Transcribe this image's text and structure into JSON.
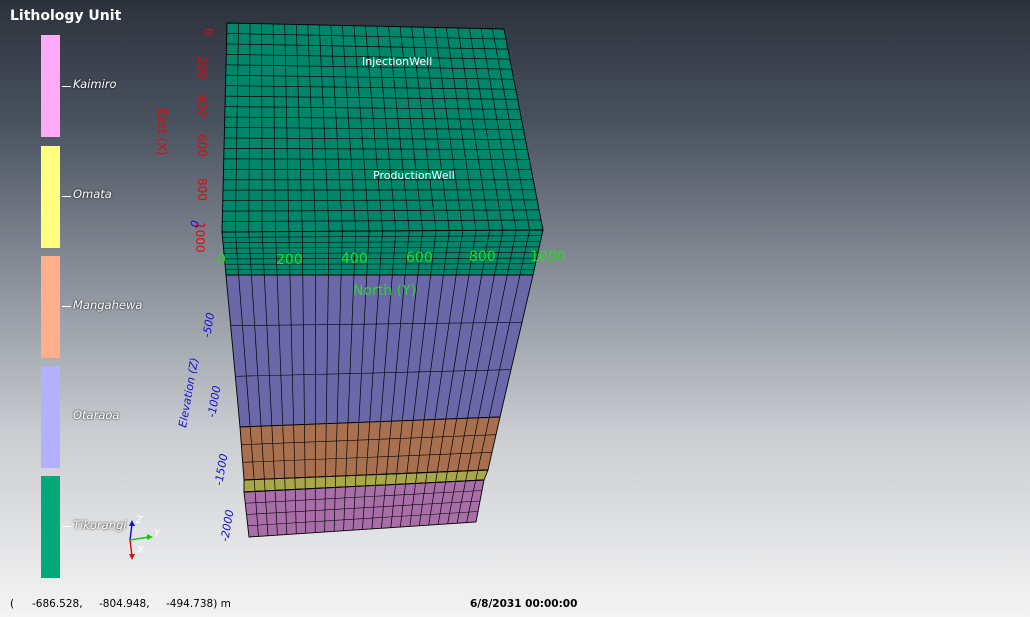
{
  "legend": {
    "title": "Lithology Unit",
    "units": [
      {
        "label": "Kaimiro",
        "color": "#ffaaf6"
      },
      {
        "label": "Omata",
        "color": "#ffff80"
      },
      {
        "label": "Mangahewa",
        "color": "#ffb08a"
      },
      {
        "label": "Otaraoa",
        "color": "#b3b0ff"
      },
      {
        "label": "Tikorangi",
        "color": "#00a87a"
      }
    ]
  },
  "axes": {
    "east_label": "East (X)",
    "east_ticks": [
      "0",
      "200",
      "400",
      "600",
      "800",
      "1000"
    ],
    "north_label": "North (Y)",
    "north_ticks": [
      "0",
      "200",
      "400",
      "600",
      "800",
      "1000"
    ],
    "elevation_label": "Elevation (Z)",
    "elevation_ticks": [
      "0",
      "-500",
      "-1000",
      "-1500",
      "-2000"
    ],
    "east_color": "#cc1111",
    "north_color": "#22dd22",
    "elevation_color": "#1111cc"
  },
  "wells": {
    "injection": "InjectionWell",
    "production": "ProductionWell"
  },
  "orientation": {
    "z": "Z",
    "y": "Y",
    "x": "X"
  },
  "status": {
    "open_paren": "(",
    "x": "-686.528,",
    "y": "-804.948,",
    "z": "-494.738) m",
    "timestamp": "6/8/2031 00:00:00"
  },
  "layer_colors": {
    "top": "#00876b",
    "otaraoa": "#6a68a8",
    "mangahewa": "#a8704e",
    "omata": "#a8a84a",
    "kaimiro": "#a86ea8"
  }
}
